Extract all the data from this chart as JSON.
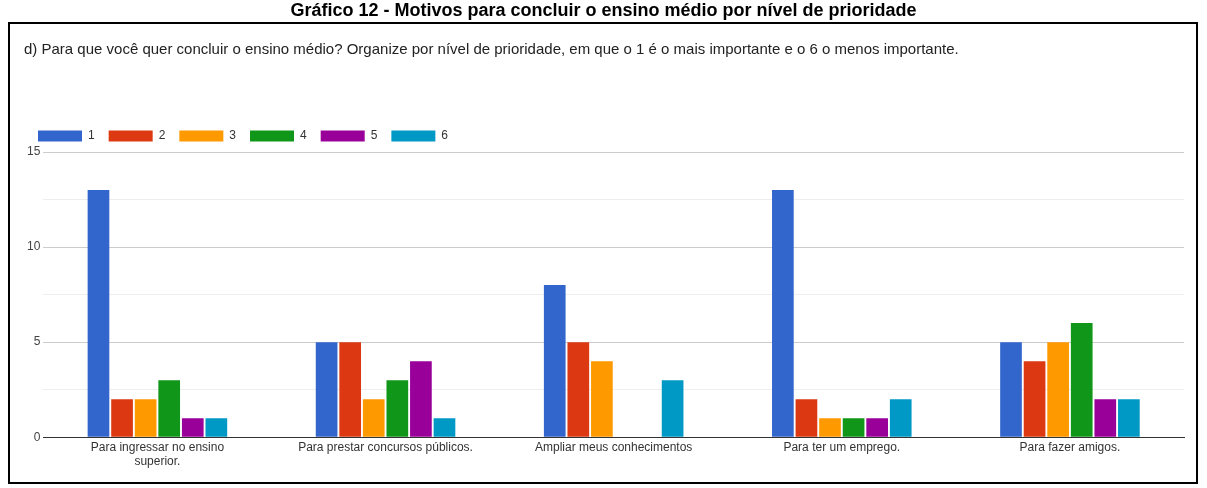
{
  "chart_data": {
    "type": "bar",
    "title": "Gráfico 12 - Motivos para concluir o ensino médio por nível de prioridade",
    "subtitle": "d) Para que você quer concluir o ensino médio? Organize por nível de prioridade, em que o 1 é o mais importante e o 6 o menos importante.",
    "categories": [
      "Para ingressar no ensino superior.",
      "Para prestar concursos públicos.",
      "Ampliar meus conhecimentos",
      "Para ter um emprego.",
      "Para fazer amigos."
    ],
    "series": [
      {
        "name": "1",
        "color": "#3366cc",
        "values": [
          13,
          5,
          8,
          13,
          5
        ]
      },
      {
        "name": "2",
        "color": "#dc3912",
        "values": [
          2,
          5,
          5,
          2,
          4
        ]
      },
      {
        "name": "3",
        "color": "#ff9900",
        "values": [
          2,
          2,
          4,
          1,
          5
        ]
      },
      {
        "name": "4",
        "color": "#109618",
        "values": [
          3,
          3,
          0,
          1,
          6
        ]
      },
      {
        "name": "5",
        "color": "#990099",
        "values": [
          1,
          4,
          0,
          1,
          2
        ]
      },
      {
        "name": "6",
        "color": "#0099c6",
        "values": [
          1,
          1,
          3,
          2,
          2
        ]
      }
    ],
    "ylim": [
      0,
      15
    ],
    "yticks": [
      0,
      {
        "value": 2.5,
        "label": null
      },
      5,
      {
        "value": 7.5,
        "label": null
      },
      10,
      {
        "value": 12.5,
        "label": null
      },
      15
    ],
    "grid": "y",
    "legend": "top left"
  }
}
